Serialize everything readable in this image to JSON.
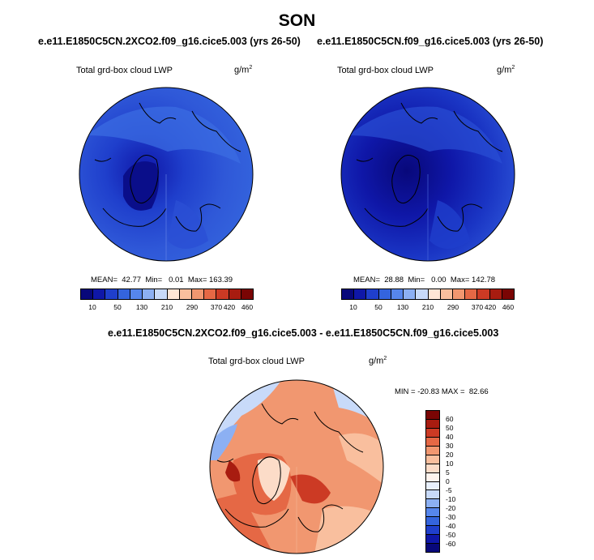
{
  "title": "SON",
  "colors": {
    "abs_scale": [
      "#08087a",
      "#0f17a8",
      "#1f3fcc",
      "#3464dd",
      "#5686ec",
      "#8cb0f3",
      "#c8daf9",
      "#ffe6d6",
      "#f9bf9e",
      "#f19770",
      "#e56845",
      "#cc3a24",
      "#a81c10",
      "#7a0504"
    ],
    "diff_scale": [
      "#7a0504",
      "#a81c10",
      "#cc3a24",
      "#e56845",
      "#f19770",
      "#f9bf9e",
      "#fcdcc8",
      "#fff4ee",
      "#e8f0fd",
      "#c8daf9",
      "#8cb0f3",
      "#5686ec",
      "#3464dd",
      "#1f3fcc",
      "#0f17a8",
      "#08087a"
    ]
  },
  "panels": [
    {
      "title": "e.e11.E1850C5CN.2XCO2.f09_g16.cice5.003 (yrs 26-50)",
      "variable": "Total grd-box cloud LWP",
      "units": "g/m",
      "units_sup": "2",
      "mean": "42.77",
      "min": "0.01",
      "max": "163.39",
      "stats_text": "MEAN=  42.77  Min=   0.01  Max= 163.39",
      "colorbar_labels": [
        "10",
        "50",
        "130",
        "210",
        "290",
        "370",
        "420",
        "460"
      ]
    },
    {
      "title": "e.e11.E1850C5CN.f09_g16.cice5.003 (yrs 26-50)",
      "variable": "Total grd-box cloud LWP",
      "units": "g/m",
      "units_sup": "2",
      "mean": "28.88",
      "min": "0.00",
      "max": "142.78",
      "stats_text": "MEAN=  28.88  Min=   0.00  Max= 142.78",
      "colorbar_labels": [
        "10",
        "50",
        "130",
        "210",
        "290",
        "370",
        "420",
        "460"
      ]
    }
  ],
  "diff": {
    "title": "e.e11.E1850C5CN.2XCO2.f09_g16.cice5.003 - e.e11.E1850C5CN.f09_g16.cice5.003",
    "variable": "Total grd-box cloud LWP",
    "units": "g/m",
    "units_sup": "2",
    "min": "-20.83",
    "max": "82.66",
    "stats_text": "MIN = -20.83 MAX =  82.66",
    "colorbar_labels": [
      "60",
      "50",
      "40",
      "30",
      "20",
      "10",
      "5",
      "0",
      "-5",
      "-10",
      "-20",
      "-30",
      "-40",
      "-50",
      "-60"
    ]
  }
}
